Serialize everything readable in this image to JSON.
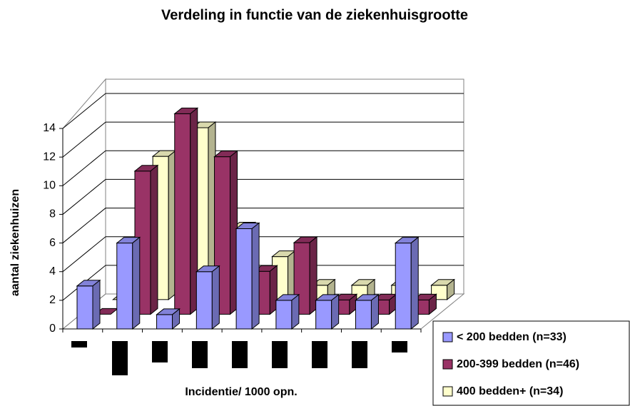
{
  "chart_data": {
    "type": "bar3d",
    "title": "Verdeling in functie van de ziekenhuisgrootte",
    "y_label": "aantal ziekenhuizen",
    "x_label": "Incidentie/ 1000 opn.",
    "categories": [
      null,
      null,
      null,
      null,
      null,
      null,
      null,
      null,
      null
    ],
    "series": [
      {
        "name": "< 200 bedden (n=33)",
        "color": "#9999ff",
        "values": [
          3,
          6,
          1,
          4,
          7,
          2,
          2,
          2,
          6
        ]
      },
      {
        "name": "200-399 bedden (n=46)",
        "color": "#993366",
        "values": [
          0,
          10,
          14,
          11,
          3,
          5,
          1,
          1,
          1
        ]
      },
      {
        "name": "400 bedden+ (n=34)",
        "color": "#ffffcc",
        "values": [
          0,
          10,
          12,
          5,
          3,
          1,
          1,
          1,
          1
        ]
      }
    ],
    "ylim": [
      0,
      14
    ],
    "yticks": [
      0,
      2,
      4,
      6,
      8,
      10,
      12,
      14
    ],
    "grid": true,
    "legend": "bottom-right"
  }
}
